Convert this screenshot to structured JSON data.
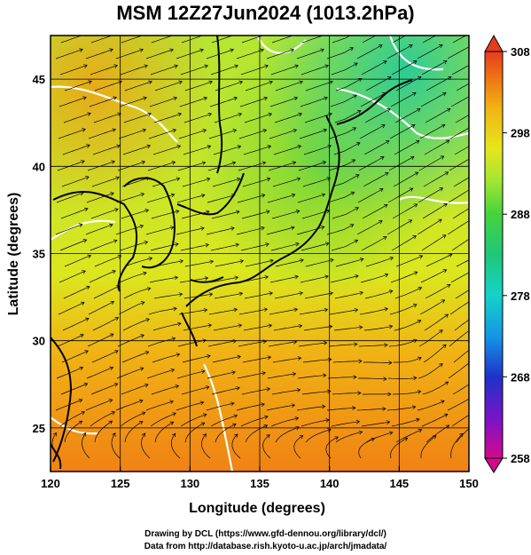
{
  "title": "MSM 12Z27Jun2024 (1013.2hPa)",
  "axes": {
    "xlabel": "Longitude (degrees)",
    "ylabel": "Latitude  (degrees)",
    "xticks": [
      "120",
      "125",
      "130",
      "135",
      "140",
      "145",
      "150"
    ],
    "yticks": [
      "25",
      "30",
      "35",
      "40",
      "45"
    ],
    "xlim": [
      120,
      150
    ],
    "ylim": [
      22.5,
      47.5
    ]
  },
  "colorbar": {
    "ticks": [
      "308",
      "298",
      "288",
      "278",
      "268",
      "258"
    ],
    "range": [
      258,
      308
    ],
    "colors": [
      "#d20a8c",
      "#1e32c8",
      "#1496e6",
      "#14d2c8",
      "#1ec878",
      "#46d23c",
      "#a0e632",
      "#e6e61e",
      "#f0b414",
      "#f07814",
      "#e63c1e"
    ]
  },
  "map": {
    "field_colors": {
      "north": "#b4e632",
      "mid": "#c8e628",
      "south": "#f0a014",
      "hot": "#f08214",
      "cool": "#64d23c",
      "coast": "#000000",
      "contour": "#ffffff",
      "streamline": "#000000"
    }
  },
  "credits": {
    "line1": "Drawing by DCL (https://www.gfd-dennou.org/library/dcl/)",
    "line2": "Data from http://database.rish.kyoto-u.ac.jp/arch/jmadata/"
  }
}
